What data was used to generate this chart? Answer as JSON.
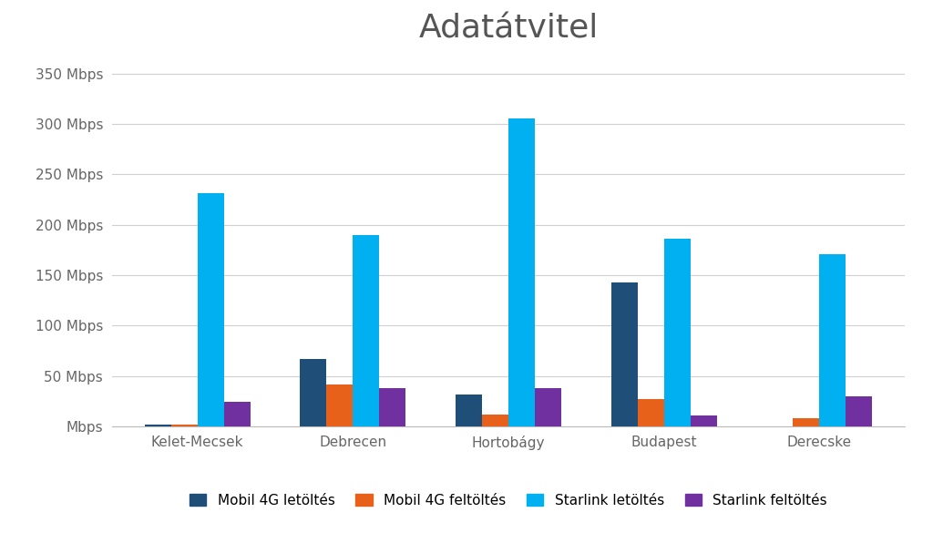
{
  "title": "Adatátvitel",
  "categories": [
    "Kelet-Mecsek",
    "Debrecen",
    "Hortobágy",
    "Budapest",
    "Derecske"
  ],
  "series": {
    "Mobil 4G letöltés": [
      2,
      67,
      32,
      143,
      0
    ],
    "Mobil 4G feltöltés": [
      2,
      42,
      12,
      27,
      8
    ],
    "Starlink letöltés": [
      231,
      190,
      305,
      186,
      171
    ],
    "Starlink feltöltés": [
      24,
      38,
      38,
      11,
      30
    ]
  },
  "colors": {
    "Mobil 4G letöltés": "#1f4e79",
    "Mobil 4G feltöltés": "#e8611a",
    "Starlink letöltés": "#00b0f0",
    "Starlink feltöltés": "#7030a0"
  },
  "yticks": [
    0,
    50,
    100,
    150,
    200,
    250,
    300,
    350
  ],
  "ytick_labels": [
    "Mbps",
    "50 Mbps",
    "100 Mbps",
    "150 Mbps",
    "200 Mbps",
    "250 Mbps",
    "300 Mbps",
    "350 Mbps"
  ],
  "ylim": [
    0,
    370
  ],
  "background_color": "#ffffff",
  "title_fontsize": 26,
  "legend_fontsize": 11,
  "tick_fontsize": 11,
  "bar_width": 0.17,
  "title_color": "#555555",
  "tick_color": "#666666",
  "grid_color": "#d0d0d0",
  "spine_color": "#bbbbbb"
}
